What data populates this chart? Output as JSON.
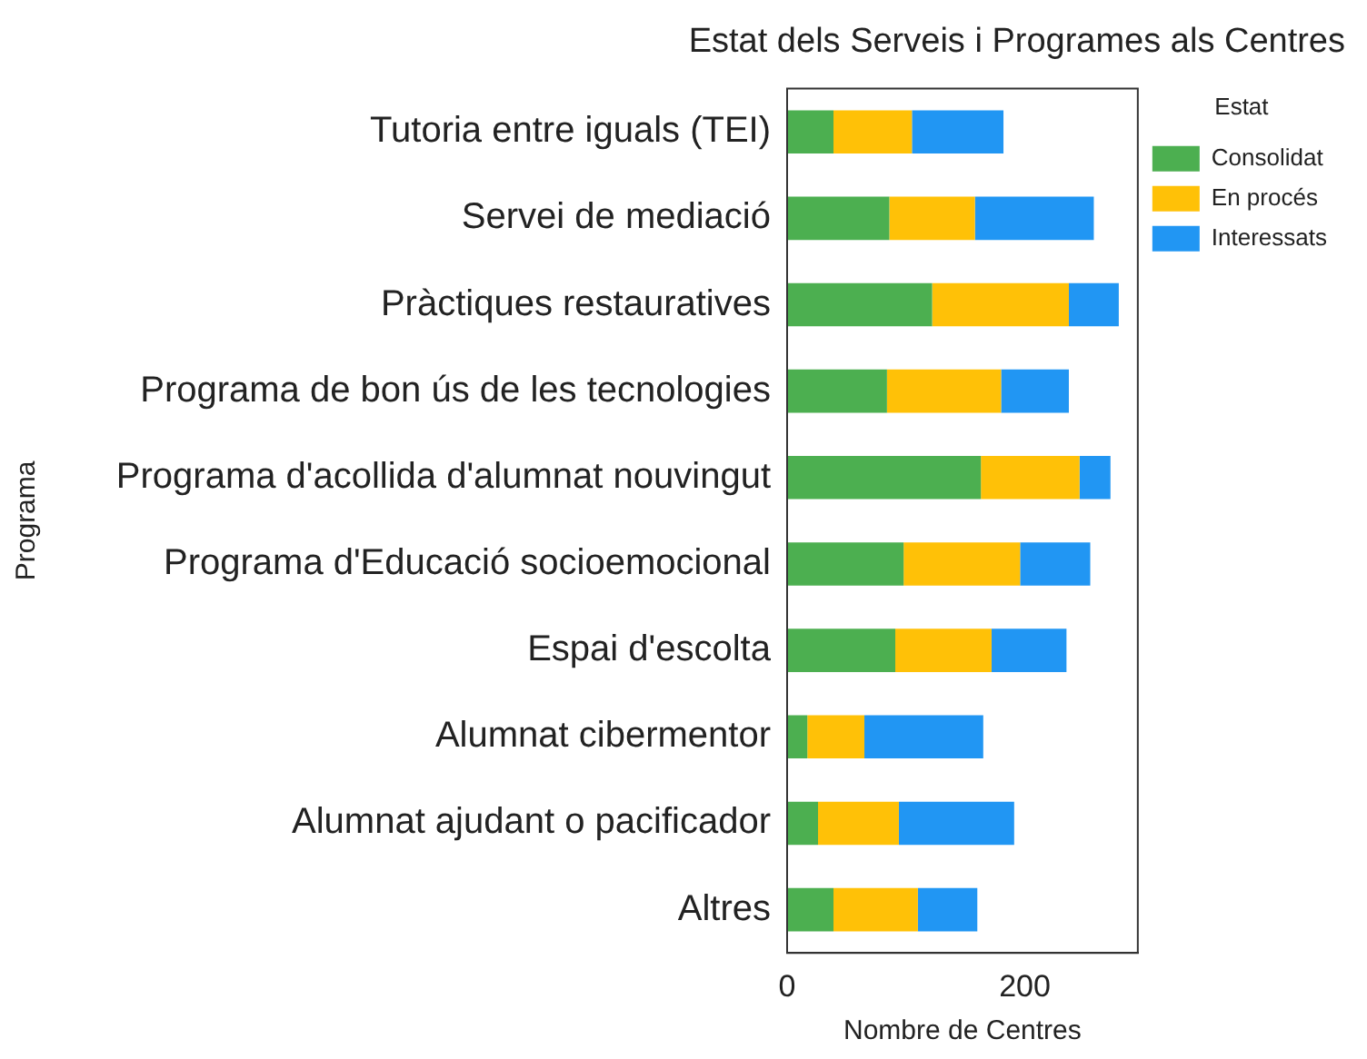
{
  "chart_data": {
    "type": "bar",
    "orientation": "horizontal",
    "stacked": true,
    "title": "Estat dels Serveis i Programes als Centres",
    "xlabel": "Nombre de Centres",
    "ylabel": "Programa",
    "legend_title": "Estat",
    "legend": "top right",
    "grid": false,
    "categories": [
      "Tutoria entre iguals (TEI)",
      "Servei de mediació",
      "Pràctiques restauratives",
      "Programa de bon ús de les tecnologies",
      "Programa d'acollida d'alumnat nouvingut",
      "Programa d'Educació socioemocional",
      "Espai d'escolta",
      "Alumnat cibermentor",
      "Alumnat ajudant o pacificador",
      "Altres"
    ],
    "xlim": [
      0,
      295
    ],
    "xticks": [
      0,
      200
    ],
    "series": [
      {
        "name": "Consolidat",
        "color": "#4caf50",
        "values": [
          39,
          86,
          122,
          84,
          163,
          98,
          91,
          17,
          26,
          39
        ]
      },
      {
        "name": "En procés",
        "color": "#ffc107",
        "values": [
          66,
          72,
          115,
          96,
          83,
          98,
          81,
          48,
          68,
          71
        ]
      },
      {
        "name": "Interessats",
        "color": "#2196f3",
        "values": [
          77,
          100,
          42,
          57,
          26,
          59,
          63,
          100,
          97,
          50
        ]
      }
    ]
  }
}
